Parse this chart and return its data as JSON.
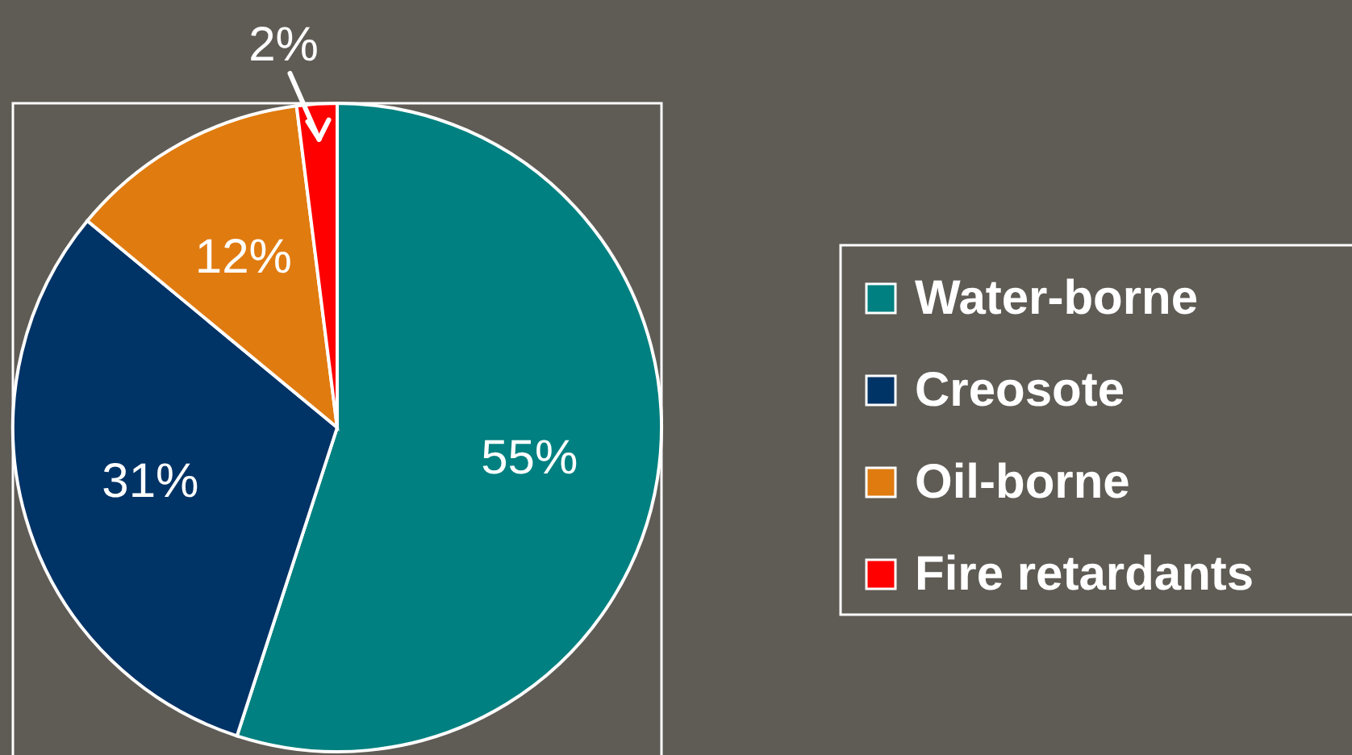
{
  "chart_data": {
    "type": "pie",
    "categories": [
      "Water-borne",
      "Creosote",
      "Oil-borne",
      "Fire retardants"
    ],
    "values": [
      55,
      31,
      12,
      2
    ],
    "colors": [
      "#008080",
      "#003366",
      "#e07b10",
      "#ff0000"
    ],
    "value_labels": [
      "55%",
      "31%",
      "12%",
      "2%"
    ],
    "legend": "right"
  }
}
